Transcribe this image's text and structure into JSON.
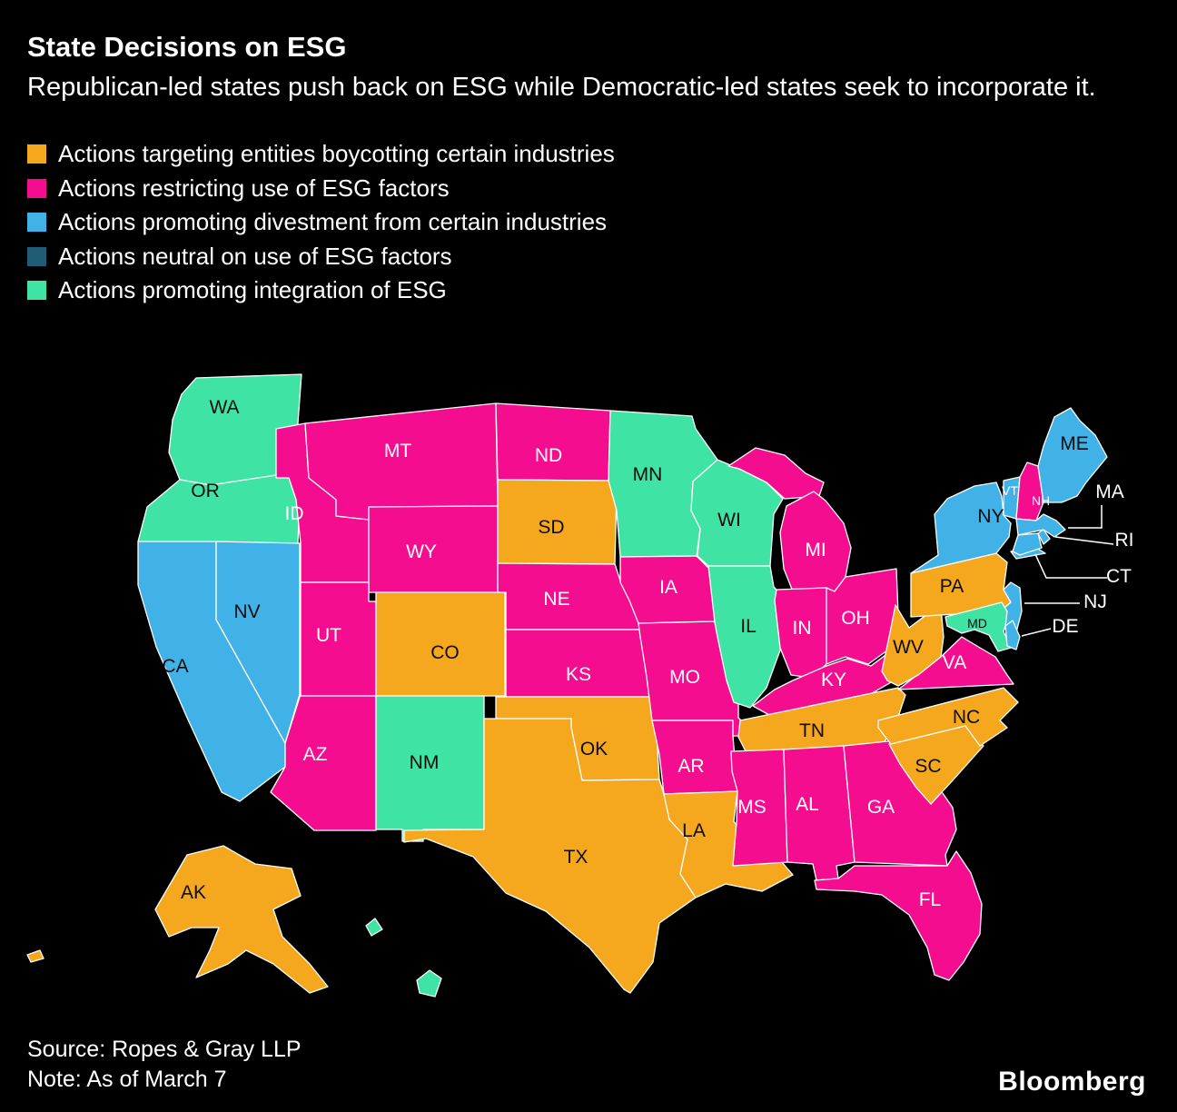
{
  "header": {
    "title": "State Decisions on ESG",
    "subtitle": "Republican-led states push back on ESG while Democratic-led states seek to incorporate it."
  },
  "colors": {
    "background": "#000000",
    "text": "#ffffff",
    "border": "#ffffff",
    "label_dark": "#0d0d0d",
    "label_light": "#ffffff"
  },
  "footer": {
    "source": "Source: Ropes & Gray LLP",
    "note": "Note: As of March 7",
    "brand": "Bloomberg"
  },
  "chart_data": {
    "type": "choropleth",
    "region": "United States",
    "legend_position": "top-left",
    "categories": [
      {
        "id": "boycott",
        "label": "Actions targeting entities boycotting certain industries",
        "color": "#F5A71E"
      },
      {
        "id": "restrict",
        "label": "Actions restricting use of ESG factors",
        "color": "#F50D8F"
      },
      {
        "id": "divest",
        "label": "Actions promoting divestment from certain industries",
        "color": "#41B2E8"
      },
      {
        "id": "neutral",
        "label": "Actions neutral on use of ESG factors",
        "color": "#215C77"
      },
      {
        "id": "integrate",
        "label": "Actions promoting integration of ESG",
        "color": "#3FE3A4"
      }
    ],
    "states": [
      {
        "abbr": "WA",
        "category": "integrate"
      },
      {
        "abbr": "OR",
        "category": "integrate"
      },
      {
        "abbr": "CA",
        "category": "divest"
      },
      {
        "abbr": "NV",
        "category": "divest"
      },
      {
        "abbr": "ID",
        "category": "restrict"
      },
      {
        "abbr": "MT",
        "category": "restrict"
      },
      {
        "abbr": "WY",
        "category": "restrict"
      },
      {
        "abbr": "UT",
        "category": "restrict"
      },
      {
        "abbr": "CO",
        "category": "boycott"
      },
      {
        "abbr": "AZ",
        "category": "restrict"
      },
      {
        "abbr": "NM",
        "category": "integrate"
      },
      {
        "abbr": "ND",
        "category": "restrict"
      },
      {
        "abbr": "SD",
        "category": "boycott"
      },
      {
        "abbr": "NE",
        "category": "restrict"
      },
      {
        "abbr": "KS",
        "category": "restrict"
      },
      {
        "abbr": "OK",
        "category": "boycott"
      },
      {
        "abbr": "TX",
        "category": "boycott"
      },
      {
        "abbr": "MN",
        "category": "integrate"
      },
      {
        "abbr": "IA",
        "category": "restrict"
      },
      {
        "abbr": "MO",
        "category": "restrict"
      },
      {
        "abbr": "AR",
        "category": "restrict"
      },
      {
        "abbr": "LA",
        "category": "boycott"
      },
      {
        "abbr": "WI",
        "category": "integrate"
      },
      {
        "abbr": "IL",
        "category": "integrate"
      },
      {
        "abbr": "MI",
        "category": "restrict"
      },
      {
        "abbr": "IN",
        "category": "restrict"
      },
      {
        "abbr": "OH",
        "category": "restrict"
      },
      {
        "abbr": "KY",
        "category": "restrict"
      },
      {
        "abbr": "TN",
        "category": "boycott"
      },
      {
        "abbr": "MS",
        "category": "restrict"
      },
      {
        "abbr": "AL",
        "category": "restrict"
      },
      {
        "abbr": "GA",
        "category": "restrict"
      },
      {
        "abbr": "FL",
        "category": "restrict"
      },
      {
        "abbr": "SC",
        "category": "boycott"
      },
      {
        "abbr": "NC",
        "category": "boycott"
      },
      {
        "abbr": "VA",
        "category": "restrict"
      },
      {
        "abbr": "WV",
        "category": "boycott"
      },
      {
        "abbr": "PA",
        "category": "boycott"
      },
      {
        "abbr": "NY",
        "category": "divest"
      },
      {
        "abbr": "VT",
        "category": "divest",
        "small": true,
        "light": true
      },
      {
        "abbr": "NH",
        "category": "restrict",
        "small": true
      },
      {
        "abbr": "ME",
        "category": "divest"
      },
      {
        "abbr": "MA",
        "category": "divest",
        "outside": true
      },
      {
        "abbr": "RI",
        "category": "divest",
        "outside": true
      },
      {
        "abbr": "CT",
        "category": "divest",
        "outside": true
      },
      {
        "abbr": "NJ",
        "category": "divest",
        "outside": true
      },
      {
        "abbr": "MD",
        "category": "integrate",
        "small": true
      },
      {
        "abbr": "DE",
        "category": "divest",
        "outside": true
      },
      {
        "abbr": "AK",
        "category": "boycott"
      },
      {
        "abbr": "HI",
        "category": "integrate",
        "show_label": false
      }
    ]
  }
}
